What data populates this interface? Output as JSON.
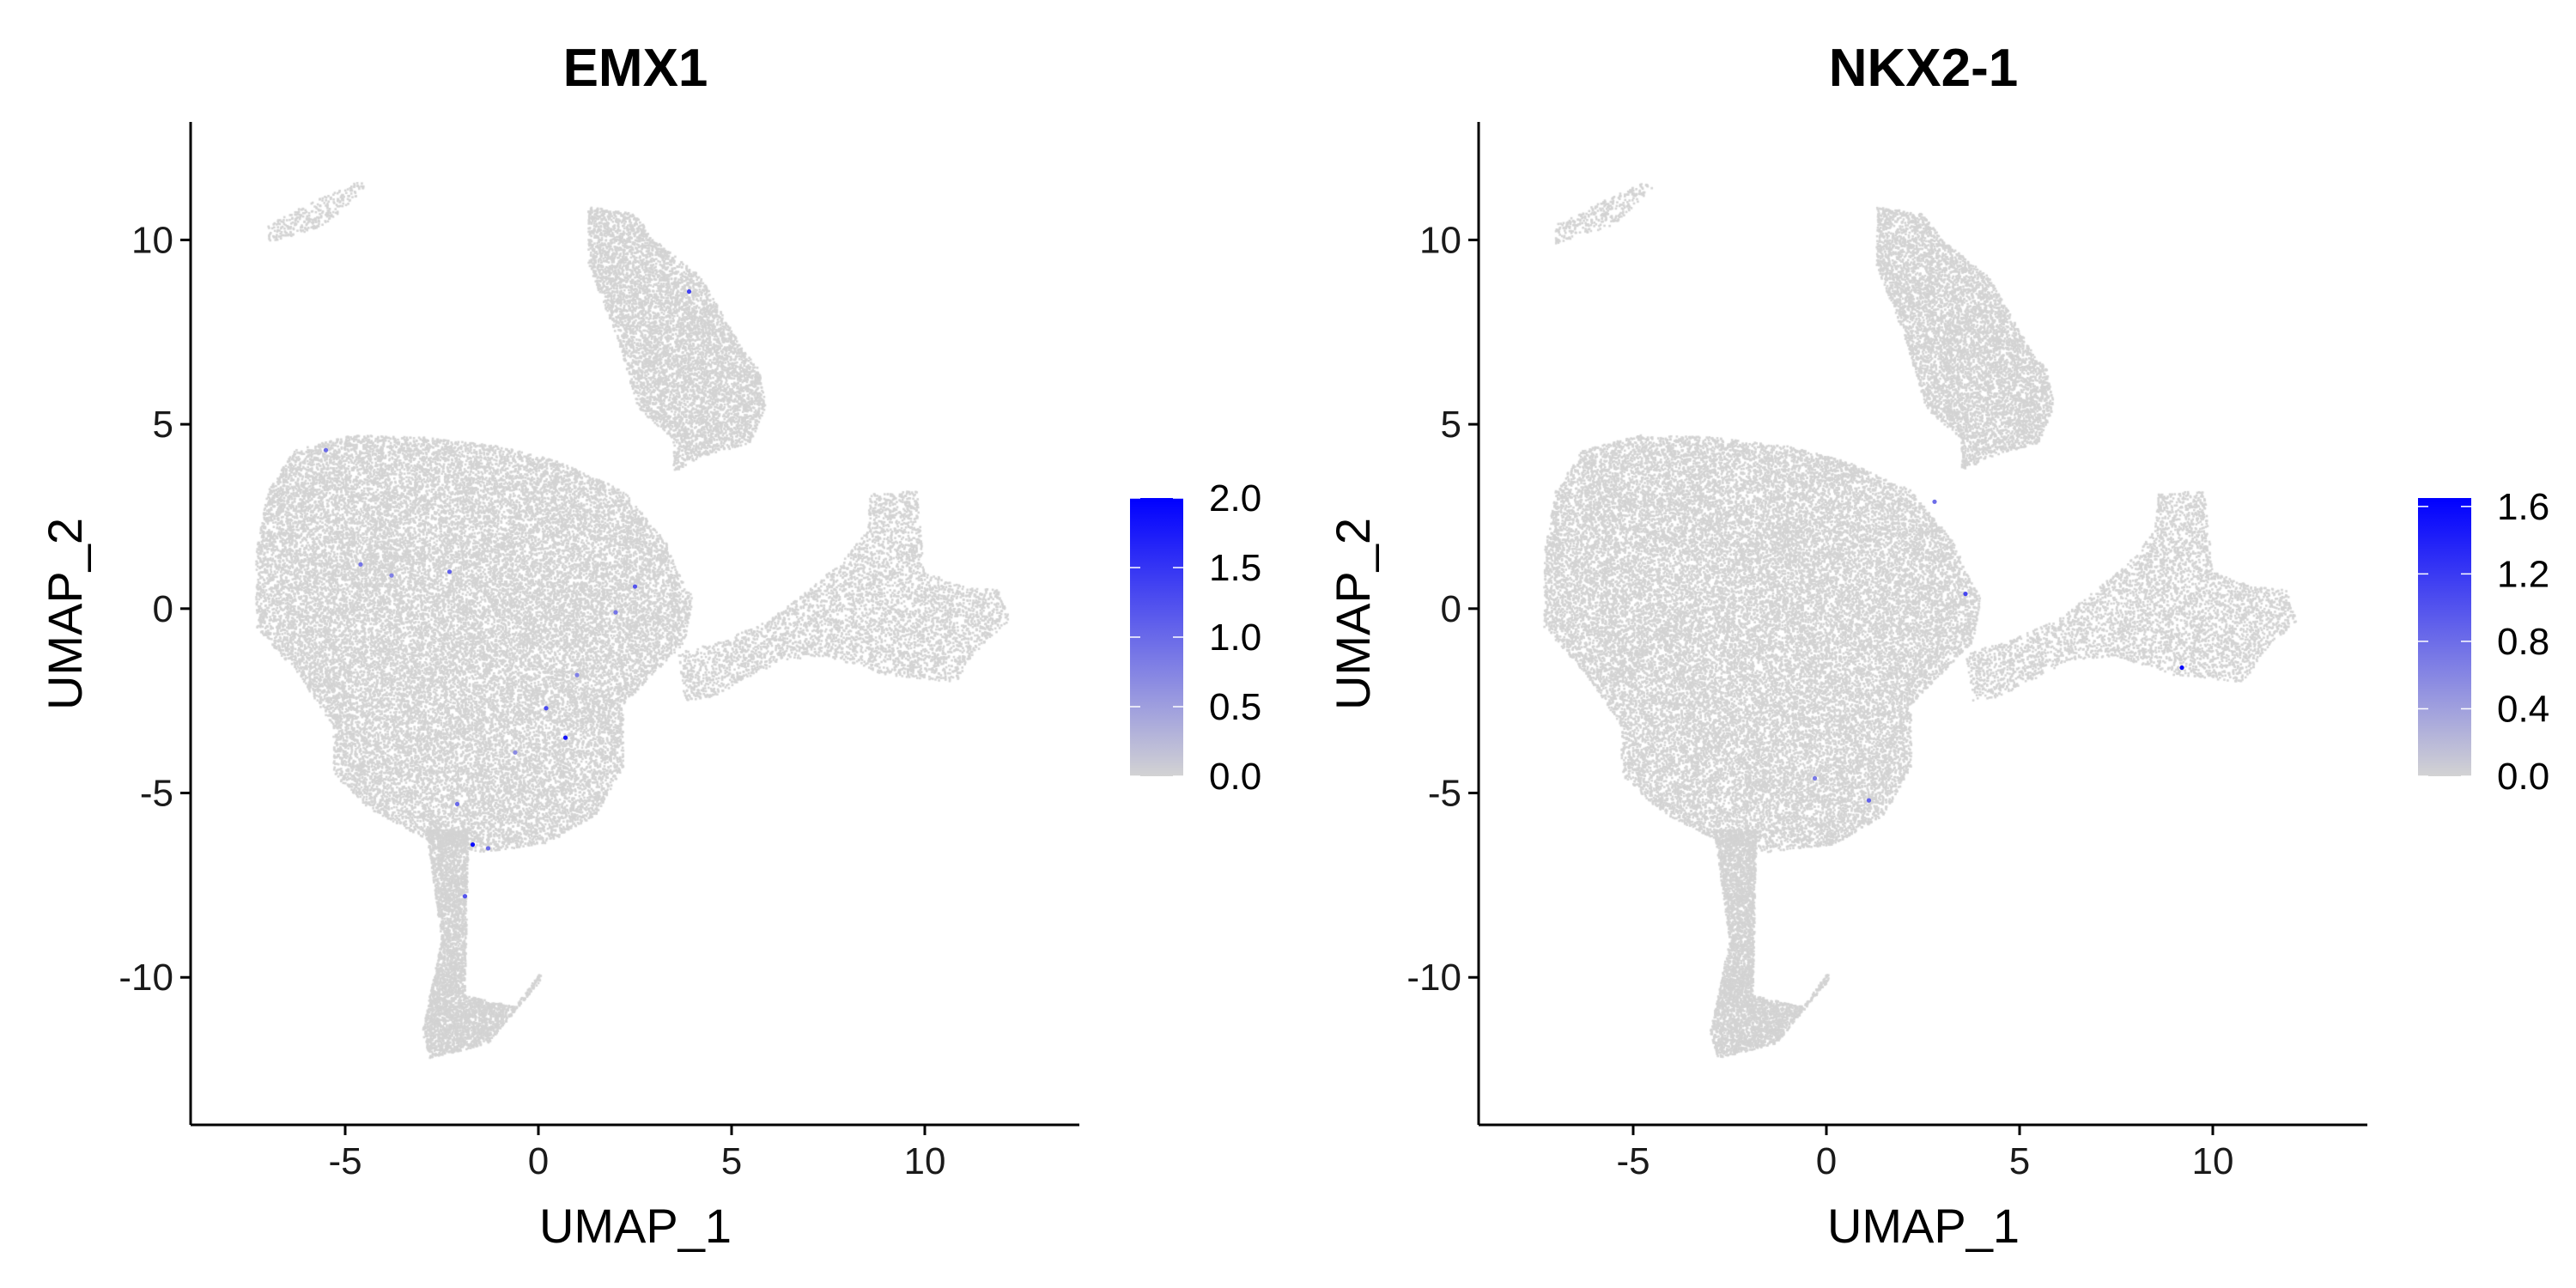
{
  "figure": {
    "low_color": "#d3d3d3",
    "high_color": "#0000ff",
    "point_color_background": "#d3d3d3"
  },
  "chart_data": [
    {
      "type": "scatter",
      "title": "EMX1",
      "xlabel": "UMAP_1",
      "ylabel": "UMAP_2",
      "xlim": [
        -9,
        14
      ],
      "ylim": [
        -14,
        13.2
      ],
      "xticks": [
        -5,
        0,
        5,
        10
      ],
      "yticks": [
        -10,
        -5,
        0,
        5,
        10
      ],
      "xtick_labels": [
        "-5",
        "0",
        "5",
        "10"
      ],
      "ytick_labels": [
        "-10",
        "-5",
        "0",
        "5",
        "10"
      ],
      "grid": false,
      "legend": {
        "placement": "right",
        "type": "colorbar",
        "max": 2.0,
        "breaks": [
          0.0,
          0.5,
          1.0,
          1.5,
          2.0
        ],
        "labels": [
          "0.0",
          "0.5",
          "1.0",
          "1.5",
          "2.0"
        ]
      },
      "expressing_cells": [
        {
          "x": 3.9,
          "y": 8.6,
          "value": 1.4
        },
        {
          "x": -5.5,
          "y": 4.3,
          "value": 1.0
        },
        {
          "x": -4.6,
          "y": 1.2,
          "value": 0.9
        },
        {
          "x": -2.3,
          "y": 1.0,
          "value": 1.1
        },
        {
          "x": -3.8,
          "y": 0.9,
          "value": 0.8
        },
        {
          "x": 2.5,
          "y": 0.6,
          "value": 1.2
        },
        {
          "x": 2.0,
          "y": -0.1,
          "value": 0.9
        },
        {
          "x": 1.0,
          "y": -1.8,
          "value": 0.8
        },
        {
          "x": 0.2,
          "y": -2.7,
          "value": 1.3
        },
        {
          "x": 0.7,
          "y": -3.5,
          "value": 1.8
        },
        {
          "x": -2.1,
          "y": -5.3,
          "value": 1.0
        },
        {
          "x": -1.7,
          "y": -6.4,
          "value": 1.9
        },
        {
          "x": -1.3,
          "y": -6.5,
          "value": 1.0
        },
        {
          "x": -1.9,
          "y": -7.8,
          "value": 1.2
        },
        {
          "x": -0.6,
          "y": -3.9,
          "value": 0.7
        }
      ]
    },
    {
      "type": "scatter",
      "title": "NKX2-1",
      "xlabel": "UMAP_1",
      "ylabel": "UMAP_2",
      "xlim": [
        -9,
        14
      ],
      "ylim": [
        -14,
        13.2
      ],
      "xticks": [
        -5,
        0,
        5,
        10
      ],
      "yticks": [
        -10,
        -5,
        0,
        5,
        10
      ],
      "xtick_labels": [
        "-5",
        "0",
        "5",
        "10"
      ],
      "ytick_labels": [
        "-10",
        "-5",
        "0",
        "5",
        "10"
      ],
      "grid": false,
      "legend": {
        "placement": "right",
        "type": "colorbar",
        "max": 1.65,
        "breaks": [
          0.0,
          0.4,
          0.8,
          1.2,
          1.6
        ],
        "labels": [
          "0.0",
          "0.4",
          "0.8",
          "1.2",
          "1.6"
        ]
      },
      "expressing_cells": [
        {
          "x": 9.2,
          "y": -1.6,
          "value": 1.6
        },
        {
          "x": 3.6,
          "y": 0.4,
          "value": 1.1
        },
        {
          "x": 1.1,
          "y": -5.2,
          "value": 0.9
        },
        {
          "x": -0.3,
          "y": -4.6,
          "value": 0.7
        },
        {
          "x": 2.8,
          "y": 2.9,
          "value": 0.8
        }
      ]
    }
  ]
}
